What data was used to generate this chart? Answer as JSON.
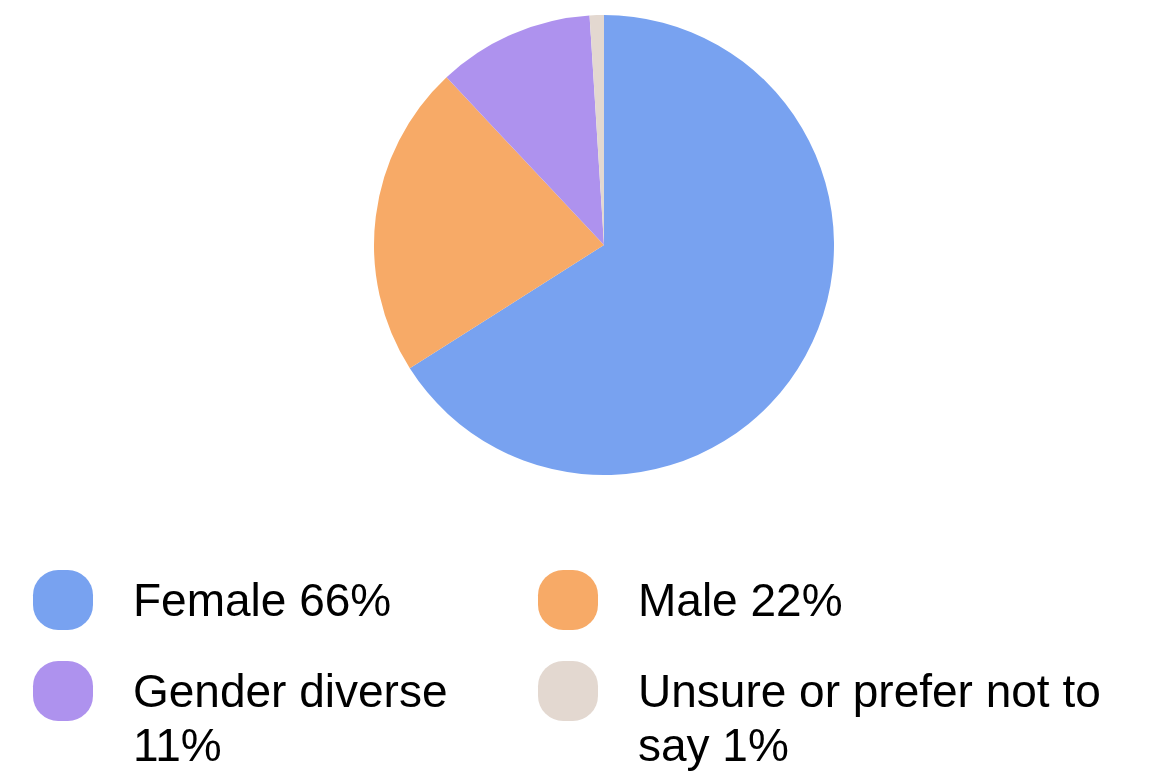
{
  "chart_data": {
    "type": "pie",
    "categories": [
      "Female 66%",
      "Male 22%",
      "Gender diverse 11%",
      "Unsure or prefer not to say 1%"
    ],
    "values": [
      66,
      22,
      11,
      1
    ],
    "colors": [
      "#78a2f0",
      "#f7aa67",
      "#ae92ee",
      "#e3d8d0"
    ],
    "legend": "bottom"
  }
}
